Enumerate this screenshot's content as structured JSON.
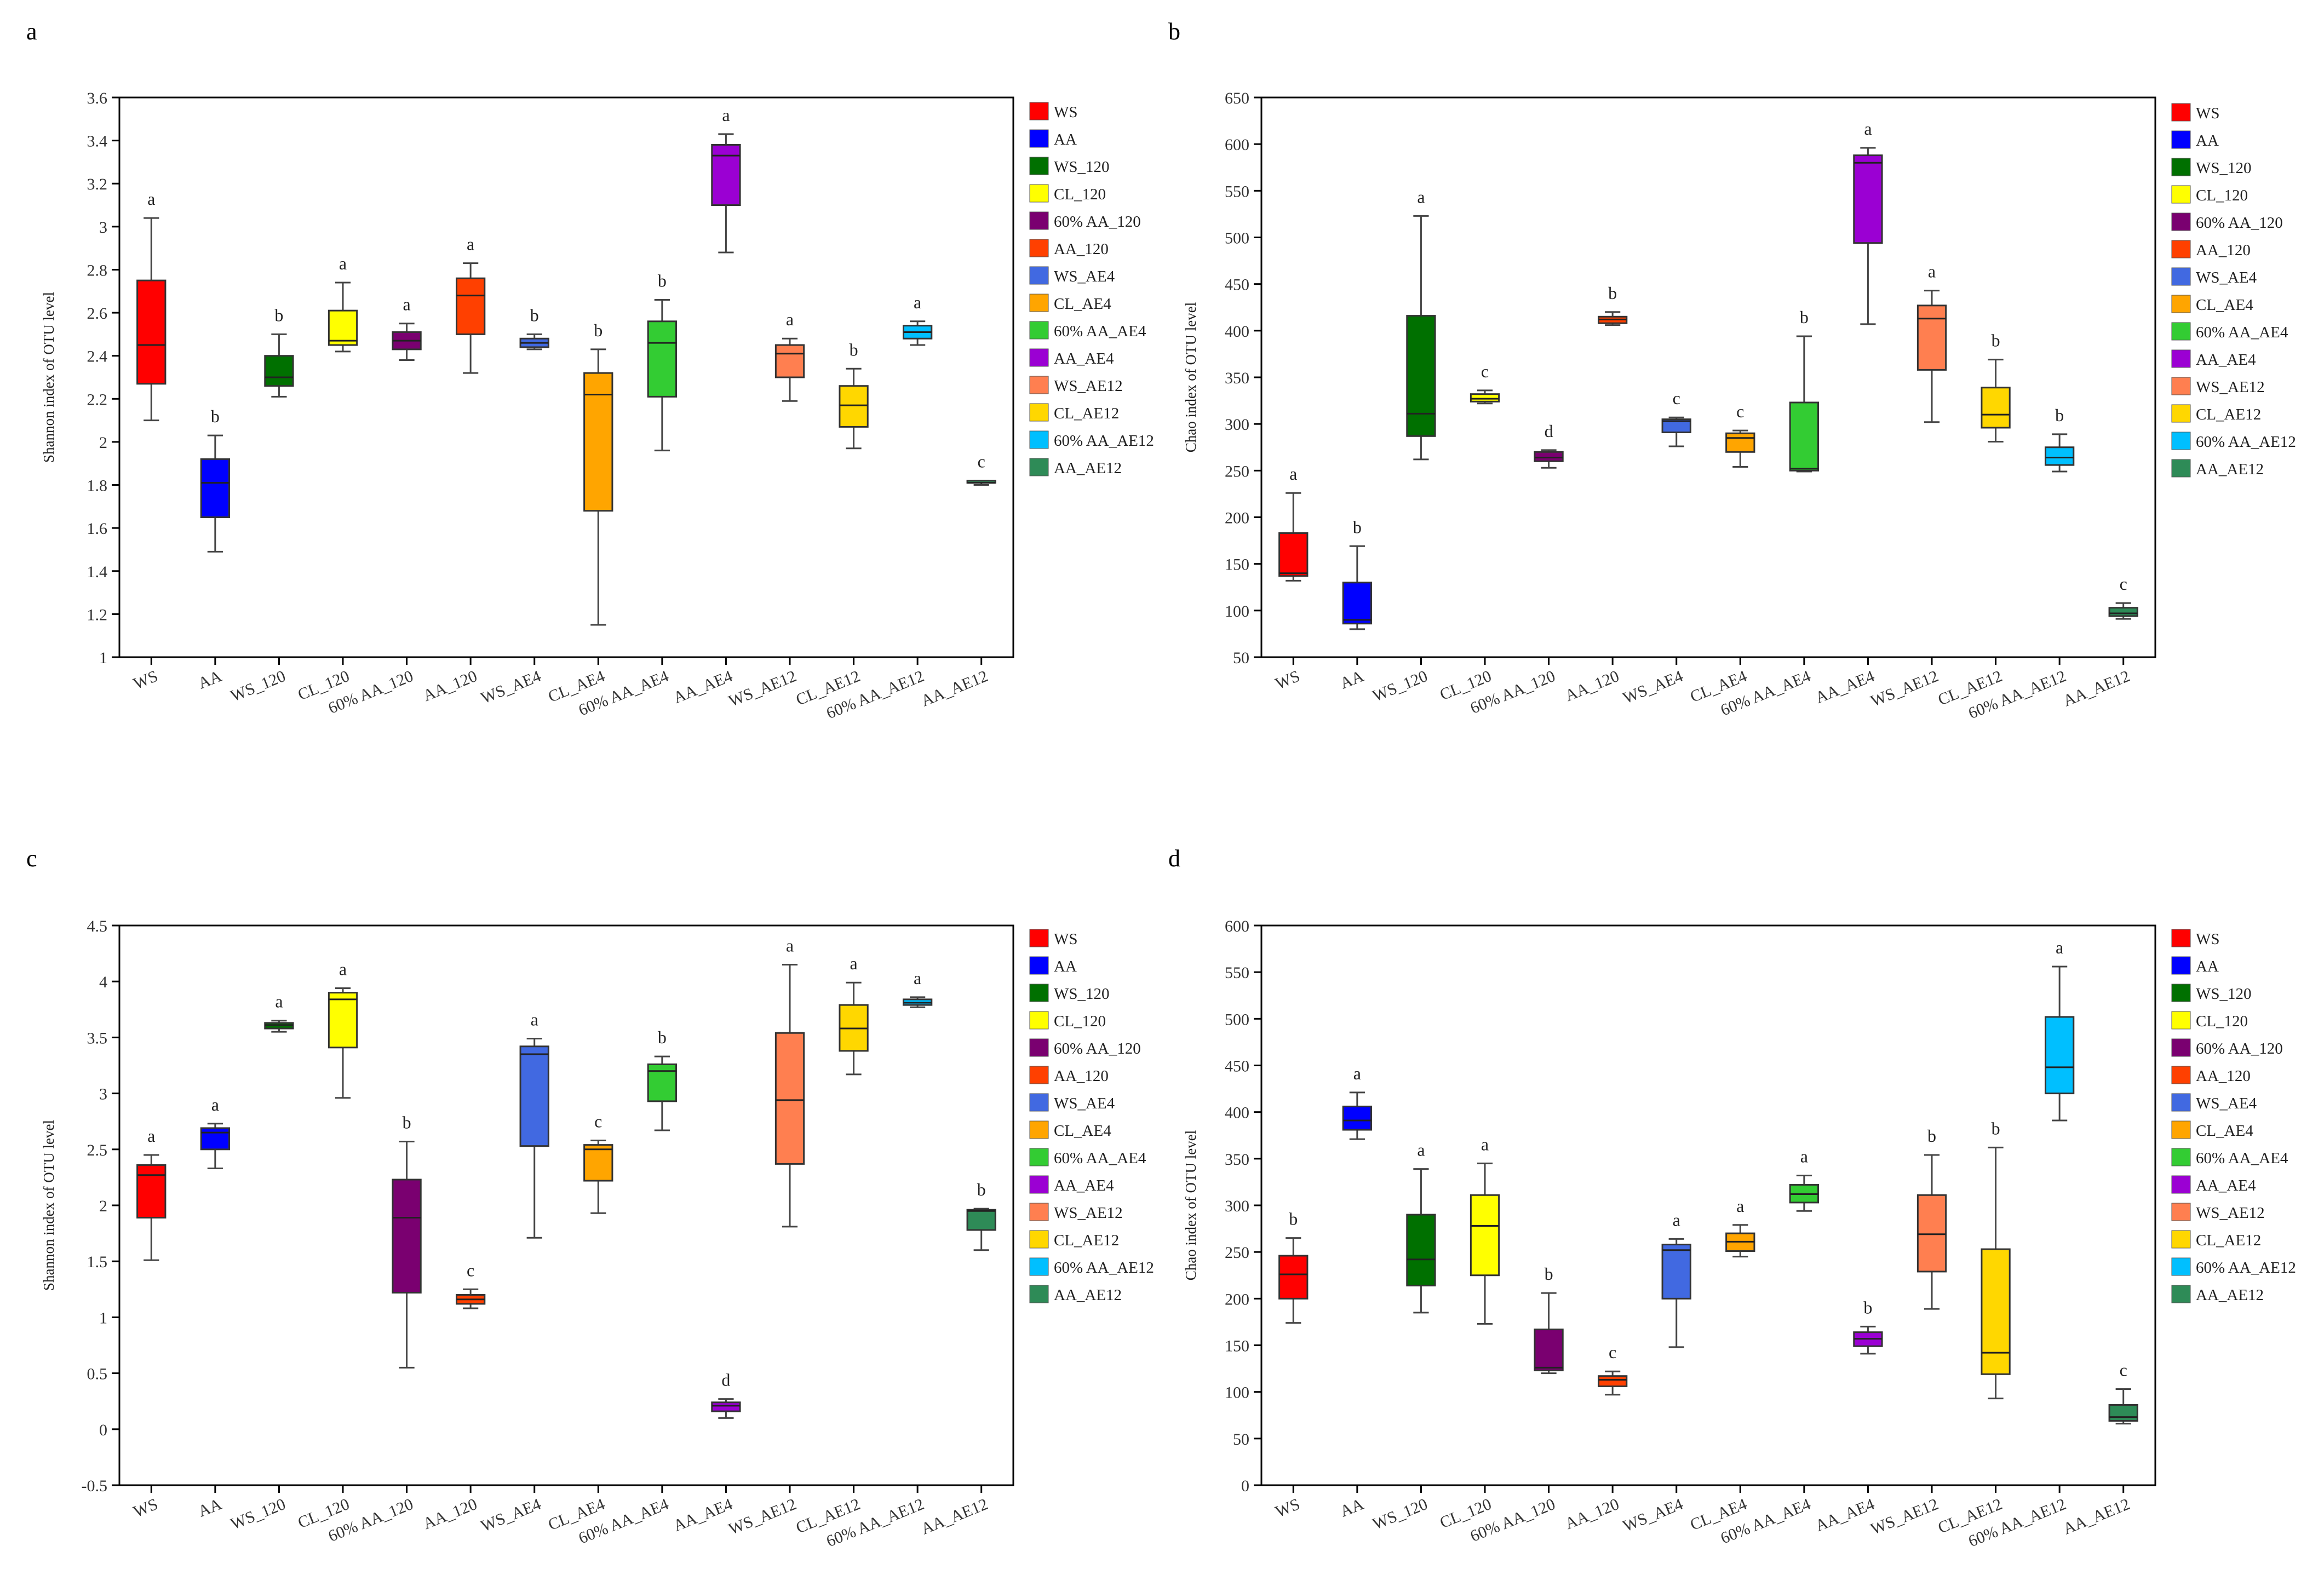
{
  "figure": {
    "description_hidden": false
  },
  "colors": {
    "WS": "#ff0000",
    "AA": "#0000ff",
    "WS_120": "#007000",
    "CL_120": "#ffff00",
    "60% AA_120": "#7a0070",
    "AA_120": "#ff4000",
    "WS_AE4": "#4169e1",
    "CL_AE4": "#ffa500",
    "60% AA_AE4": "#33cc33",
    "AA_AE4": "#9b00d3",
    "WS_AE12": "#ff7f50",
    "CL_AE12": "#ffd700",
    "60% AA_AE12": "#00bfff",
    "AA_AE12": "#2e8b57"
  },
  "chart_data": [
    {
      "panel": "a",
      "type": "boxplot",
      "ylabel": "Shannon index of OTU level",
      "ylim": [
        1,
        3.6
      ],
      "yticks": [
        "1",
        "1.2",
        "1.4",
        "1.6",
        "1.8",
        "2",
        "2.2",
        "2.4",
        "2.6",
        "2.8",
        "3",
        "3.2",
        "3.4",
        "3.6"
      ],
      "ytick_values": [
        1,
        1.2,
        1.4,
        1.6,
        1.8,
        2,
        2.2,
        2.4,
        2.6,
        2.8,
        3,
        3.2,
        3.4,
        3.6
      ],
      "categories": [
        "WS",
        "AA",
        "WS_120",
        "CL_120",
        "60% AA_120",
        "AA_120",
        "WS_AE4",
        "CL_AE4",
        "60% AA_AE4",
        "AA_AE4",
        "WS_AE12",
        "CL_AE12",
        "60% AA_AE12",
        "AA_AE12"
      ],
      "legend": [
        "WS",
        "AA",
        "WS_120",
        "CL_120",
        "60% AA_120",
        "AA_120",
        "WS_AE4",
        "CL_AE4",
        "60% AA_AE4",
        "AA_AE4",
        "WS_AE12",
        "CL_AE12",
        "60% AA_AE12",
        "AA_AE12"
      ],
      "boxes": [
        {
          "min": 2.1,
          "q1": 2.27,
          "median": 2.45,
          "q3": 2.75,
          "max": 3.04
        },
        {
          "min": 1.49,
          "q1": 1.65,
          "median": 1.81,
          "q3": 1.92,
          "max": 2.03
        },
        {
          "min": 2.21,
          "q1": 2.26,
          "median": 2.3,
          "q3": 2.4,
          "max": 2.5
        },
        {
          "min": 2.42,
          "q1": 2.45,
          "median": 2.47,
          "q3": 2.61,
          "max": 2.74
        },
        {
          "min": 2.38,
          "q1": 2.43,
          "median": 2.47,
          "q3": 2.51,
          "max": 2.55
        },
        {
          "min": 2.32,
          "q1": 2.5,
          "median": 2.68,
          "q3": 2.76,
          "max": 2.83
        },
        {
          "min": 2.43,
          "q1": 2.44,
          "median": 2.46,
          "q3": 2.48,
          "max": 2.5
        },
        {
          "min": 1.15,
          "q1": 1.68,
          "median": 2.22,
          "q3": 2.32,
          "max": 2.43
        },
        {
          "min": 1.96,
          "q1": 2.21,
          "median": 2.46,
          "q3": 2.56,
          "max": 2.66
        },
        {
          "min": 2.88,
          "q1": 3.1,
          "median": 3.33,
          "q3": 3.38,
          "max": 3.43
        },
        {
          "min": 2.19,
          "q1": 2.3,
          "median": 2.41,
          "q3": 2.45,
          "max": 2.48
        },
        {
          "min": 1.97,
          "q1": 2.07,
          "median": 2.17,
          "q3": 2.26,
          "max": 2.34
        },
        {
          "min": 2.45,
          "q1": 2.48,
          "median": 2.51,
          "q3": 2.54,
          "max": 2.56
        },
        {
          "min": 1.8,
          "q1": 1.81,
          "median": 1.81,
          "q3": 1.82,
          "max": 1.82
        }
      ],
      "letters": [
        "a",
        "b",
        "b",
        "a",
        "a",
        "a",
        "b",
        "b",
        "b",
        "a",
        "a",
        "b",
        "a",
        "c"
      ]
    },
    {
      "panel": "b",
      "type": "boxplot",
      "ylabel": "Chao index of OTU level",
      "ylim": [
        50,
        650
      ],
      "yticks": [
        "50",
        "100",
        "150",
        "200",
        "250",
        "300",
        "350",
        "400",
        "450",
        "500",
        "550",
        "600",
        "650"
      ],
      "ytick_values": [
        50,
        100,
        150,
        200,
        250,
        300,
        350,
        400,
        450,
        500,
        550,
        600,
        650
      ],
      "categories": [
        "WS",
        "AA",
        "WS_120",
        "CL_120",
        "60% AA_120",
        "AA_120",
        "WS_AE4",
        "CL_AE4",
        "60% AA_AE4",
        "AA_AE4",
        "WS_AE12",
        "CL_AE12",
        "60% AA_AE12",
        "AA_AE12"
      ],
      "legend": [
        "WS",
        "AA",
        "WS_120",
        "CL_120",
        "60% AA_120",
        "AA_120",
        "WS_AE4",
        "CL_AE4",
        "60% AA_AE4",
        "AA_AE4",
        "WS_AE12",
        "CL_AE12",
        "60% AA_AE12",
        "AA_AE12"
      ],
      "boxes": [
        {
          "min": 132,
          "q1": 137,
          "median": 140,
          "q3": 183,
          "max": 226
        },
        {
          "min": 80,
          "q1": 86,
          "median": 90,
          "q3": 130,
          "max": 169
        },
        {
          "min": 262,
          "q1": 287,
          "median": 311,
          "q3": 416,
          "max": 523
        },
        {
          "min": 322,
          "q1": 324,
          "median": 327,
          "q3": 332,
          "max": 336
        },
        {
          "min": 253,
          "q1": 260,
          "median": 264,
          "q3": 270,
          "max": 272
        },
        {
          "min": 406,
          "q1": 408,
          "median": 412,
          "q3": 415,
          "max": 420
        },
        {
          "min": 276,
          "q1": 291,
          "median": 303,
          "q3": 305,
          "max": 307
        },
        {
          "min": 254,
          "q1": 270,
          "median": 285,
          "q3": 290,
          "max": 293
        },
        {
          "min": 249,
          "q1": 250,
          "median": 252,
          "q3": 323,
          "max": 394
        },
        {
          "min": 407,
          "q1": 494,
          "median": 580,
          "q3": 588,
          "max": 596
        },
        {
          "min": 302,
          "q1": 358,
          "median": 413,
          "q3": 427,
          "max": 443
        },
        {
          "min": 281,
          "q1": 296,
          "median": 310,
          "q3": 339,
          "max": 369
        },
        {
          "min": 249,
          "q1": 256,
          "median": 264,
          "q3": 275,
          "max": 289
        },
        {
          "min": 91,
          "q1": 94,
          "median": 97,
          "q3": 103,
          "max": 108
        }
      ],
      "letters": [
        "a",
        "b",
        "a",
        "c",
        "d",
        "b",
        "c",
        "c",
        "b",
        "a",
        "a",
        "b",
        "b",
        "c"
      ]
    },
    {
      "panel": "c",
      "type": "boxplot",
      "ylabel": "Shannon index of OTU level",
      "ylim": [
        -0.5,
        4.5
      ],
      "yticks": [
        "-0.5",
        "0",
        "0.5",
        "1",
        "1.5",
        "2",
        "2.5",
        "3",
        "3.5",
        "4",
        "4.5"
      ],
      "ytick_values": [
        -0.5,
        0,
        0.5,
        1,
        1.5,
        2,
        2.5,
        3,
        3.5,
        4,
        4.5
      ],
      "categories": [
        "WS",
        "AA",
        "WS_120",
        "CL_120",
        "60% AA_120",
        "AA_120",
        "WS_AE4",
        "CL_AE4",
        "60% AA_AE4",
        "AA_AE4",
        "WS_AE12",
        "CL_AE12",
        "60% AA_AE12",
        "AA_AE12"
      ],
      "legend": [
        "WS",
        "AA",
        "WS_120",
        "CL_120",
        "60% AA_120",
        "AA_120",
        "WS_AE4",
        "CL_AE4",
        "60% AA_AE4",
        "AA_AE4",
        "WS_AE12",
        "CL_AE12",
        "60% AA_AE12",
        "AA_AE12"
      ],
      "boxes": [
        {
          "min": 1.51,
          "q1": 1.89,
          "median": 2.27,
          "q3": 2.36,
          "max": 2.45
        },
        {
          "min": 2.33,
          "q1": 2.5,
          "median": 2.65,
          "q3": 2.69,
          "max": 2.73
        },
        {
          "min": 3.55,
          "q1": 3.58,
          "median": 3.61,
          "q3": 3.63,
          "max": 3.65
        },
        {
          "min": 2.96,
          "q1": 3.41,
          "median": 3.84,
          "q3": 3.9,
          "max": 3.94
        },
        {
          "min": 0.55,
          "q1": 1.22,
          "median": 1.89,
          "q3": 2.23,
          "max": 2.57
        },
        {
          "min": 1.08,
          "q1": 1.12,
          "median": 1.16,
          "q3": 1.2,
          "max": 1.25
        },
        {
          "min": 1.71,
          "q1": 2.53,
          "median": 3.35,
          "q3": 3.42,
          "max": 3.49
        },
        {
          "min": 1.93,
          "q1": 2.22,
          "median": 2.5,
          "q3": 2.54,
          "max": 2.58
        },
        {
          "min": 2.67,
          "q1": 2.93,
          "median": 3.2,
          "q3": 3.26,
          "max": 3.33
        },
        {
          "min": 0.1,
          "q1": 0.16,
          "median": 0.21,
          "q3": 0.24,
          "max": 0.27
        },
        {
          "min": 1.81,
          "q1": 2.37,
          "median": 2.94,
          "q3": 3.54,
          "max": 4.15
        },
        {
          "min": 3.17,
          "q1": 3.38,
          "median": 3.58,
          "q3": 3.79,
          "max": 3.99
        },
        {
          "min": 3.77,
          "q1": 3.79,
          "median": 3.81,
          "q3": 3.84,
          "max": 3.86
        },
        {
          "min": 1.6,
          "q1": 1.78,
          "median": 1.95,
          "q3": 1.96,
          "max": 1.97
        }
      ],
      "letters": [
        "a",
        "a",
        "a",
        "a",
        "b",
        "c",
        "a",
        "c",
        "b",
        "d",
        "a",
        "a",
        "a",
        "b"
      ]
    },
    {
      "panel": "d",
      "type": "boxplot",
      "ylabel": "Chao index of OTU level",
      "ylim": [
        0,
        600
      ],
      "yticks": [
        "0",
        "50",
        "100",
        "150",
        "200",
        "250",
        "300",
        "350",
        "400",
        "450",
        "500",
        "550",
        "600"
      ],
      "ytick_values": [
        0,
        50,
        100,
        150,
        200,
        250,
        300,
        350,
        400,
        450,
        500,
        550,
        600
      ],
      "categories": [
        "WS",
        "AA",
        "WS_120",
        "CL_120",
        "60% AA_120",
        "AA_120",
        "WS_AE4",
        "CL_AE4",
        "60% AA_AE4",
        "AA_AE4",
        "WS_AE12",
        "CL_AE12",
        "60% AA_AE12",
        "AA_AE12"
      ],
      "legend": [
        "WS",
        "AA",
        "WS_120",
        "CL_120",
        "60% AA_120",
        "AA_120",
        "WS_AE4",
        "CL_AE4",
        "60% AA_AE4",
        "AA_AE4",
        "WS_AE12",
        "CL_AE12",
        "60% AA_AE12",
        "AA_AE12"
      ],
      "boxes": [
        {
          "min": 174,
          "q1": 200,
          "median": 226,
          "q3": 246,
          "max": 265
        },
        {
          "min": 371,
          "q1": 381,
          "median": 391,
          "q3": 406,
          "max": 421
        },
        {
          "min": 185,
          "q1": 214,
          "median": 242,
          "q3": 290,
          "max": 339
        },
        {
          "min": 173,
          "q1": 225,
          "median": 278,
          "q3": 311,
          "max": 345
        },
        {
          "min": 120,
          "q1": 123,
          "median": 126,
          "q3": 167,
          "max": 206
        },
        {
          "min": 97,
          "q1": 106,
          "median": 113,
          "q3": 117,
          "max": 122
        },
        {
          "min": 148,
          "q1": 200,
          "median": 252,
          "q3": 258,
          "max": 264
        },
        {
          "min": 245,
          "q1": 251,
          "median": 261,
          "q3": 270,
          "max": 279
        },
        {
          "min": 294,
          "q1": 303,
          "median": 312,
          "q3": 322,
          "max": 332
        },
        {
          "min": 141,
          "q1": 149,
          "median": 157,
          "q3": 164,
          "max": 170
        },
        {
          "min": 189,
          "q1": 229,
          "median": 269,
          "q3": 311,
          "max": 354
        },
        {
          "min": 93,
          "q1": 119,
          "median": 142,
          "q3": 253,
          "max": 362
        },
        {
          "min": 391,
          "q1": 420,
          "median": 448,
          "q3": 502,
          "max": 556
        },
        {
          "min": 66,
          "q1": 69,
          "median": 73,
          "q3": 86,
          "max": 103
        }
      ],
      "letters": [
        "b",
        "a",
        "a",
        "a",
        "b",
        "c",
        "a",
        "a",
        "a",
        "b",
        "b",
        "b",
        "a",
        "c"
      ]
    }
  ]
}
